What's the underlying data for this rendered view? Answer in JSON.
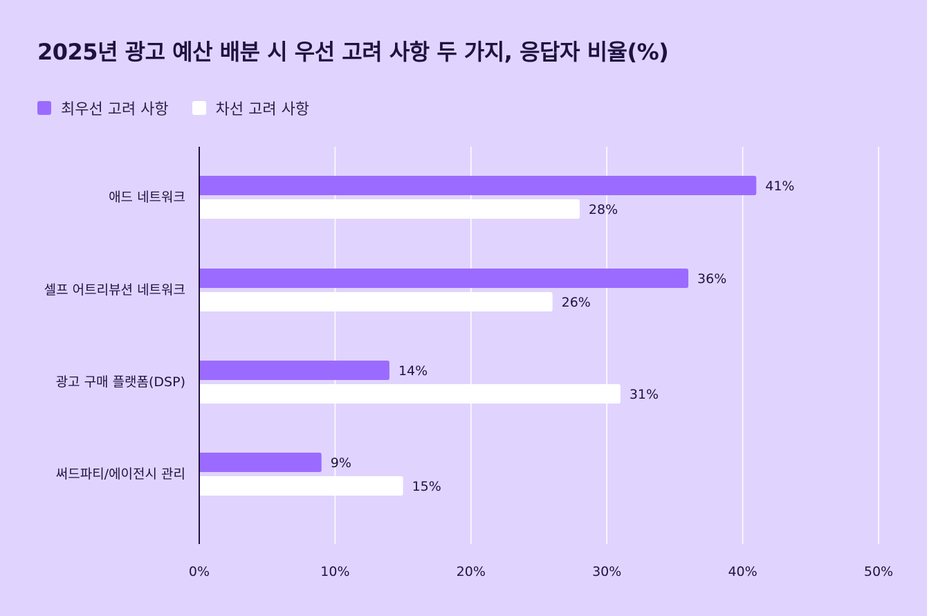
{
  "chart_data": {
    "type": "bar",
    "orientation": "horizontal",
    "title": "2025년 광고 예산 배분 시 우선 고려 사항 두 가지, 응답자 비율(%)",
    "categories": [
      "애드 네트워크",
      "셀프 어트리뷰션 네트워크",
      "광고 구매 플랫폼(DSP)",
      "써드파티/에이전시 관리"
    ],
    "series": [
      {
        "name": "최우선 고려 사항",
        "values": [
          41,
          36,
          14,
          9
        ],
        "labels": [
          "41%",
          "36%",
          "14%",
          "9%"
        ],
        "color": "#9b6bff"
      },
      {
        "name": "차선 고려 사항",
        "values": [
          28,
          26,
          31,
          15
        ],
        "labels": [
          "28%",
          "26%",
          "31%",
          "15%"
        ],
        "color": "#ffffff"
      }
    ],
    "xlim": [
      0,
      50
    ],
    "xticks": [
      0,
      10,
      20,
      30,
      40,
      50
    ],
    "xtick_labels": [
      "0%",
      "10%",
      "20%",
      "30%",
      "40%",
      "50%"
    ],
    "grid": true,
    "legend_position": "top-left",
    "colors": {
      "background": "#e0d4ff",
      "grid": "#ffffff",
      "axis": "#1e1240",
      "text": "#1e1240"
    }
  }
}
